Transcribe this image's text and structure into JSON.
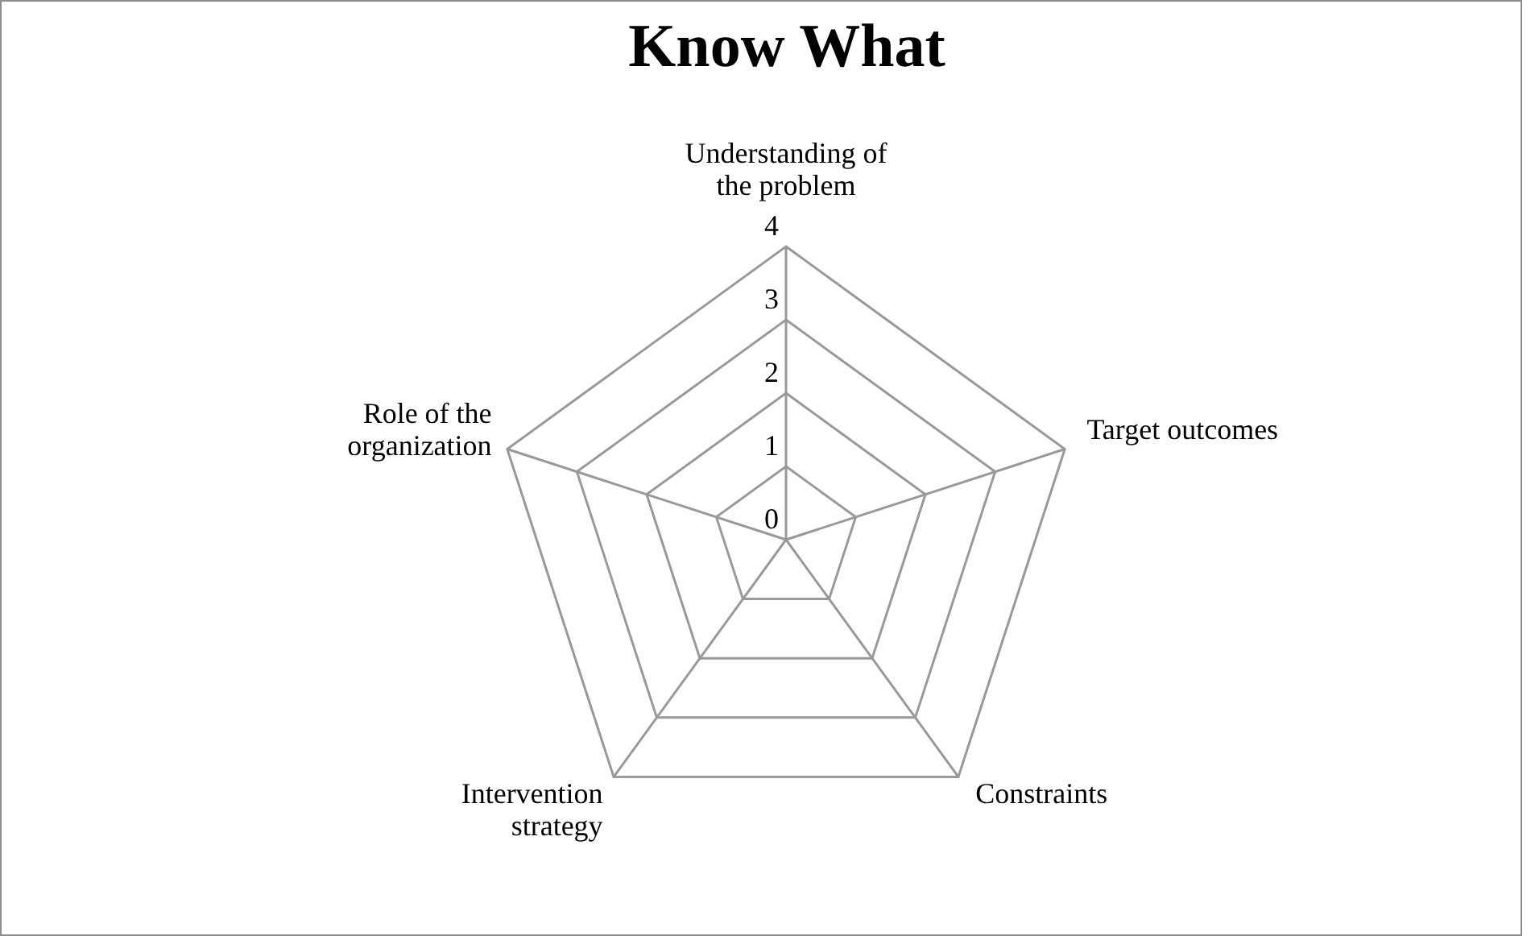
{
  "chart_data": {
    "type": "radar",
    "title": "Know What",
    "categories": [
      "Understanding of the problem",
      "Target outcomes",
      "Constraints",
      "Intervention strategy",
      "Role of the organization"
    ],
    "ylim": [
      0,
      4
    ],
    "yticks": [
      0,
      1,
      2,
      3,
      4
    ],
    "grid": true
  }
}
